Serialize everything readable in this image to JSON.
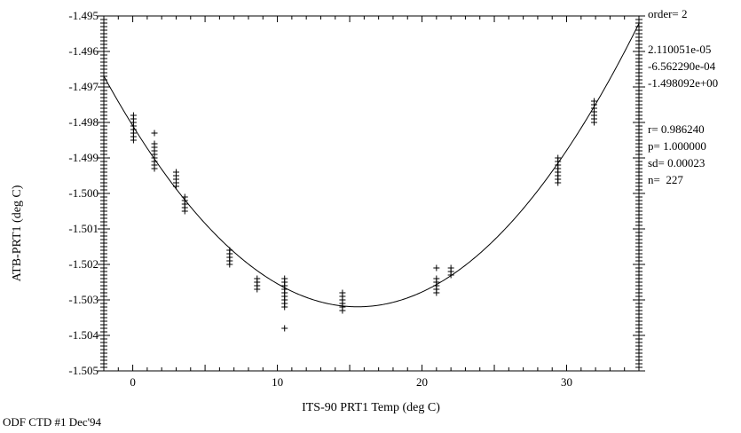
{
  "chart_data": {
    "type": "scatter",
    "title": "",
    "xlabel": "ITS-90 PRT1 Temp (deg C)",
    "ylabel": "ATB-PRT1 (deg C)",
    "xlim": [
      -2,
      35
    ],
    "ylim": [
      -1.505,
      -1.495
    ],
    "x_ticks": [
      0,
      10,
      20,
      30
    ],
    "x_tick_labels": [
      "0",
      "10",
      "20",
      "30"
    ],
    "y_ticks": [
      -1.495,
      -1.496,
      -1.497,
      -1.498,
      -1.499,
      -1.5,
      -1.501,
      -1.502,
      -1.503,
      -1.504,
      -1.505
    ],
    "y_tick_labels": [
      "-1.495",
      "-1.496",
      "-1.497",
      "-1.498",
      "-1.499",
      "-1.500",
      "-1.501",
      "-1.502",
      "-1.503",
      "-1.504",
      "-1.505"
    ],
    "fit": {
      "order": 2,
      "coefficients": [
        2.110051e-05,
        -0.000656229,
        -1.498092
      ]
    },
    "points": [
      {
        "x": 0.05,
        "ys": [
          -1.4978,
          -1.4979,
          -1.498,
          -1.4981,
          -1.4982,
          -1.4983,
          -1.4984,
          -1.4985
        ]
      },
      {
        "x": 1.5,
        "ys": [
          -1.4983,
          -1.4986,
          -1.4987,
          -1.4988,
          -1.4989,
          -1.499,
          -1.4991,
          -1.4992,
          -1.4993
        ]
      },
      {
        "x": 3.0,
        "ys": [
          -1.4994,
          -1.4995,
          -1.4996,
          -1.4997,
          -1.4998
        ]
      },
      {
        "x": 3.6,
        "ys": [
          -1.5001,
          -1.5002,
          -1.5003,
          -1.5004,
          -1.5005
        ]
      },
      {
        "x": 6.7,
        "ys": [
          -1.5016,
          -1.5017,
          -1.5018,
          -1.5019,
          -1.502
        ]
      },
      {
        "x": 8.6,
        "ys": [
          -1.5024,
          -1.5025,
          -1.5026,
          -1.5027
        ]
      },
      {
        "x": 10.5,
        "ys": [
          -1.5024,
          -1.5025,
          -1.5026,
          -1.5027,
          -1.5028,
          -1.5029,
          -1.503,
          -1.5031,
          -1.5032,
          -1.5038
        ]
      },
      {
        "x": 14.5,
        "ys": [
          -1.5028,
          -1.5029,
          -1.503,
          -1.5031,
          -1.5032,
          -1.5033
        ]
      },
      {
        "x": 21.0,
        "ys": [
          -1.5021,
          -1.5024,
          -1.5025,
          -1.5026,
          -1.5027,
          -1.5028
        ]
      },
      {
        "x": 22.0,
        "ys": [
          -1.5021,
          -1.5022,
          -1.5023
        ]
      },
      {
        "x": 29.4,
        "ys": [
          -1.499,
          -1.4991,
          -1.4992,
          -1.4993,
          -1.4994,
          -1.4995,
          -1.4996,
          -1.4997
        ]
      },
      {
        "x": 31.9,
        "ys": [
          -1.4974,
          -1.4975,
          -1.4976,
          -1.4977,
          -1.4978,
          -1.4979,
          -1.498
        ]
      }
    ]
  },
  "annotations": {
    "order": "order= 2",
    "coef1": "2.110051e-05",
    "coef2": "-6.562290e-04",
    "coef3": "-1.498092e+00",
    "r": "r= 0.986240",
    "p": "p= 1.000000",
    "sd": "sd= 0.00023",
    "n": "n=  227"
  },
  "footer": "ODF CTD #1 Dec'94"
}
